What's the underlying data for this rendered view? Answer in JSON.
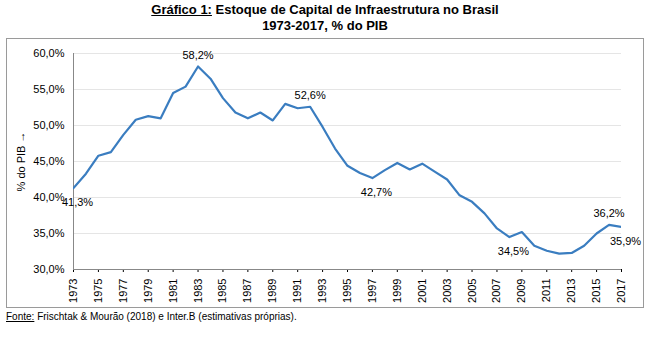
{
  "chart_data": {
    "type": "line",
    "title": "Gráfico 1: Estoque de Capital de Infraestrutura no Brasil",
    "subtitle": "1973-2017, % do PIB",
    "y_label": "% do PIB",
    "caption": "Fonte: Frischtak & Mourão (2018) e Inter.B (estimativas próprias).",
    "x": [
      1973,
      1974,
      1975,
      1976,
      1977,
      1978,
      1979,
      1980,
      1981,
      1982,
      1983,
      1984,
      1985,
      1986,
      1987,
      1988,
      1989,
      1990,
      1991,
      1992,
      1993,
      1994,
      1995,
      1996,
      1997,
      1998,
      1999,
      2000,
      2001,
      2002,
      2003,
      2004,
      2005,
      2006,
      2007,
      2008,
      2009,
      2010,
      2011,
      2012,
      2013,
      2014,
      2015,
      2016,
      2017
    ],
    "values": [
      41.3,
      43.3,
      45.8,
      46.3,
      48.7,
      50.8,
      51.3,
      51.0,
      54.5,
      55.4,
      58.2,
      56.5,
      53.8,
      51.8,
      51.0,
      51.8,
      50.7,
      53.0,
      52.4,
      52.6,
      49.8,
      46.8,
      44.4,
      43.4,
      42.7,
      43.8,
      44.8,
      43.9,
      44.7,
      43.6,
      42.5,
      40.3,
      39.4,
      37.8,
      35.7,
      34.5,
      35.2,
      33.3,
      32.6,
      32.2,
      32.3,
      33.3,
      35.0,
      36.2,
      35.9
    ],
    "color": "#3a7dc0",
    "xlim": [
      1973,
      2017
    ],
    "xticks": [
      1973,
      1975,
      1977,
      1979,
      1981,
      1983,
      1985,
      1987,
      1989,
      1991,
      1993,
      1995,
      1997,
      1999,
      2001,
      2003,
      2005,
      2007,
      2009,
      2011,
      2013,
      2015,
      2017
    ],
    "ylim": [
      30,
      60
    ],
    "yticks": [
      {
        "value": 30,
        "label": "30,0%"
      },
      {
        "value": 35,
        "label": "35,0%"
      },
      {
        "value": 40,
        "label": "40,0%"
      },
      {
        "value": 45,
        "label": "45,0%"
      },
      {
        "value": 50,
        "label": "50,0%"
      },
      {
        "value": 55,
        "label": "55,0%"
      },
      {
        "value": 60,
        "label": "60,0%"
      }
    ],
    "grid": true,
    "annotations": [
      {
        "x": 1973,
        "y": 41.3,
        "text": "41,3%"
      },
      {
        "x": 1983,
        "y": 58.2,
        "text": "58,2%"
      },
      {
        "x": 1992,
        "y": 52.6,
        "text": "52,6%"
      },
      {
        "x": 1997,
        "y": 42.7,
        "text": "42,7%"
      },
      {
        "x": 2008,
        "y": 34.5,
        "text": "34,5%"
      },
      {
        "x": 2016,
        "y": 36.2,
        "text": "36,2%"
      },
      {
        "x": 2017,
        "y": 35.9,
        "text": "35,9%"
      }
    ]
  }
}
